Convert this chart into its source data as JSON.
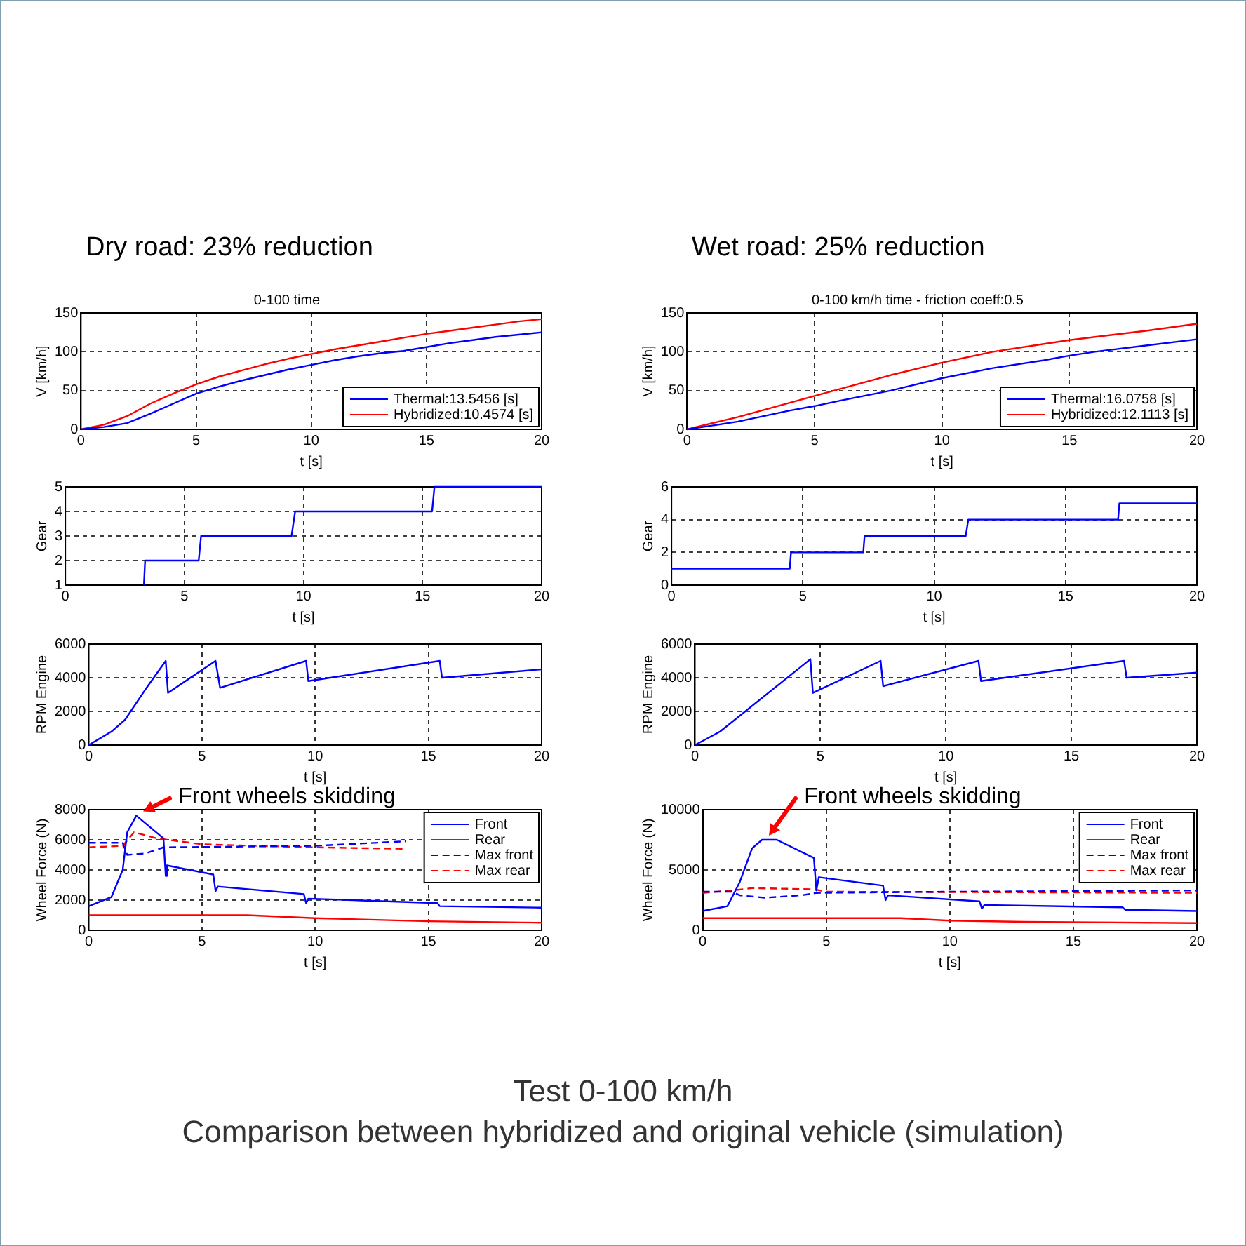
{
  "chart_data": [
    {
      "type": "line",
      "title": "Dry road: 23% reduction",
      "subtitle": "0-100 time",
      "xlabel": "t [s]",
      "ylabel": "V [km/h]",
      "xlim": [
        0,
        20
      ],
      "xticks": [
        0,
        5,
        10,
        15,
        20
      ],
      "ylim": [
        0,
        150
      ],
      "yticks": [
        0,
        50,
        100,
        150
      ],
      "grid": true,
      "legend": "bottom right",
      "series": [
        {
          "name": "Thermal:13.5456 [s]",
          "color": "#0000ff",
          "x": [
            0,
            1,
            2,
            3,
            4,
            5,
            6,
            7,
            8,
            9,
            10,
            11,
            12,
            13,
            14,
            15,
            16,
            17,
            18,
            19,
            20
          ],
          "values": [
            0,
            3,
            8,
            20,
            33,
            46,
            55,
            63,
            70,
            77,
            83,
            89,
            94,
            98,
            101,
            106,
            111,
            115,
            119,
            122,
            125
          ]
        },
        {
          "name": "Hybridized:10.4574 [s]",
          "color": "#ff0000",
          "x": [
            0,
            1,
            2,
            3,
            4,
            5,
            6,
            7,
            8,
            9,
            10,
            11,
            12,
            13,
            14,
            15,
            16,
            17,
            18,
            19,
            20
          ],
          "values": [
            0,
            6,
            17,
            33,
            46,
            58,
            68,
            76,
            84,
            91,
            97,
            103,
            108,
            113,
            118,
            123,
            127,
            131,
            135,
            139,
            142
          ]
        }
      ]
    },
    {
      "type": "line",
      "title": "Wet road: 25% reduction",
      "subtitle": "0-100 km/h time - friction coeff:0.5",
      "xlabel": "t [s]",
      "ylabel": "V [km/h]",
      "xlim": [
        0,
        20
      ],
      "xticks": [
        0,
        5,
        10,
        15,
        20
      ],
      "ylim": [
        0,
        150
      ],
      "yticks": [
        0,
        50,
        100,
        150
      ],
      "grid": true,
      "legend": "bottom right",
      "series": [
        {
          "name": "Thermal:16.0758 [s]",
          "color": "#0000ff",
          "x": [
            0,
            2,
            4,
            5,
            6,
            8,
            10,
            12,
            14,
            15,
            16,
            18,
            20
          ],
          "values": [
            0,
            10,
            24,
            30,
            37,
            50,
            66,
            79,
            89,
            95,
            100,
            108,
            116
          ]
        },
        {
          "name": "Hybridized:12.1113 [s]",
          "color": "#ff0000",
          "x": [
            0,
            2,
            4,
            5,
            6,
            8,
            10,
            12,
            14,
            15,
            16,
            18,
            20
          ],
          "values": [
            0,
            16,
            34,
            43,
            52,
            70,
            86,
            100,
            110,
            115,
            119,
            127,
            136
          ]
        }
      ]
    },
    {
      "type": "line",
      "xlabel": "t [s]",
      "ylabel": "Gear",
      "xlim": [
        0,
        20
      ],
      "xticks": [
        0,
        5,
        10,
        15,
        20
      ],
      "ylim": [
        1,
        5
      ],
      "yticks": [
        1,
        2,
        3,
        4,
        5
      ],
      "grid": true,
      "series": [
        {
          "color": "#0000ff",
          "x": [
            3.3,
            3.35,
            5.6,
            5.7,
            9.5,
            9.65,
            15.4,
            15.5,
            20
          ],
          "values": [
            1,
            2,
            2,
            3,
            3,
            4,
            4,
            5,
            5
          ]
        }
      ]
    },
    {
      "type": "line",
      "xlabel": "t [s]",
      "ylabel": "Gear",
      "xlim": [
        0,
        20
      ],
      "xticks": [
        0,
        5,
        10,
        15,
        20
      ],
      "ylim": [
        0,
        6
      ],
      "yticks": [
        0,
        2,
        4,
        6
      ],
      "grid": true,
      "series": [
        {
          "color": "#0000ff",
          "x": [
            0,
            4.5,
            4.55,
            7.3,
            7.35,
            11.2,
            11.3,
            17,
            17.05,
            20
          ],
          "values": [
            1,
            1,
            2,
            2,
            3,
            3,
            4,
            4,
            5,
            5
          ]
        }
      ]
    },
    {
      "type": "line",
      "xlabel": "t [s]",
      "ylabel": "RPM Engine",
      "xlim": [
        0,
        20
      ],
      "xticks": [
        0,
        5,
        10,
        15,
        20
      ],
      "ylim": [
        0,
        6000
      ],
      "yticks": [
        0,
        2000,
        4000,
        6000
      ],
      "grid": true,
      "series": [
        {
          "color": "#0000ff",
          "x": [
            0,
            1,
            1.6,
            2.5,
            3.4,
            3.5,
            5.6,
            5.8,
            9.6,
            9.7,
            15.5,
            15.6,
            20
          ],
          "values": [
            0,
            800,
            1500,
            3300,
            5000,
            3100,
            5000,
            3400,
            5000,
            3800,
            5000,
            4000,
            4500
          ]
        }
      ]
    },
    {
      "type": "line",
      "xlabel": "t [s]",
      "ylabel": "RPM Engine",
      "xlim": [
        0,
        20
      ],
      "xticks": [
        0,
        5,
        10,
        15,
        20
      ],
      "ylim": [
        0,
        6000
      ],
      "yticks": [
        0,
        2000,
        4000,
        6000
      ],
      "grid": true,
      "series": [
        {
          "color": "#0000ff",
          "x": [
            0,
            1,
            4.6,
            4.7,
            7.4,
            7.5,
            11.3,
            11.4,
            17.1,
            17.2,
            20
          ],
          "values": [
            0,
            800,
            5100,
            3100,
            5000,
            3500,
            5000,
            3800,
            5000,
            4000,
            4300
          ]
        }
      ]
    },
    {
      "type": "line",
      "xlabel": "t [s]",
      "ylabel": "Wheel Force (N)",
      "xlim": [
        0,
        20
      ],
      "xticks": [
        0,
        5,
        10,
        15,
        20
      ],
      "ylim": [
        0,
        8000
      ],
      "yticks": [
        0,
        2000,
        4000,
        6000,
        8000
      ],
      "grid": true,
      "legend": "top right",
      "annotations": [
        {
          "text": "Front wheels skidding",
          "x": 2.1,
          "y": 7600
        }
      ],
      "series": [
        {
          "name": "Front",
          "color": "#0000ff",
          "x": [
            0,
            1,
            1.5,
            1.7,
            2.1,
            2.5,
            3.3,
            3.4,
            3.45,
            5.5,
            5.6,
            5.7,
            9.5,
            9.6,
            9.7,
            15.4,
            15.5,
            20
          ],
          "values": [
            1600,
            2200,
            4000,
            6500,
            7600,
            7100,
            6100,
            3600,
            4300,
            3700,
            2600,
            2900,
            2400,
            1800,
            2100,
            1800,
            1600,
            1500
          ]
        },
        {
          "name": "Rear",
          "color": "#ff0000",
          "x": [
            0,
            7,
            10,
            15,
            20
          ],
          "values": [
            1000,
            1000,
            800,
            600,
            500
          ]
        },
        {
          "name": "Max front",
          "color": "#0000ff",
          "line_style": "dashed",
          "x": [
            0,
            1.5,
            1.7,
            2.5,
            3.3,
            10,
            14
          ],
          "values": [
            5800,
            5800,
            5000,
            5100,
            5500,
            5600,
            5900
          ]
        },
        {
          "name": "Max rear",
          "color": "#ff0000",
          "line_style": "dashed",
          "x": [
            0,
            1.5,
            2,
            3,
            5,
            10,
            14
          ],
          "values": [
            5500,
            5600,
            6500,
            6100,
            5700,
            5500,
            5400
          ]
        }
      ]
    },
    {
      "type": "line",
      "xlabel": "t [s]",
      "ylabel": "Wheel Force (N)",
      "xlim": [
        0,
        20
      ],
      "xticks": [
        0,
        5,
        10,
        15,
        20
      ],
      "ylim": [
        0,
        10000
      ],
      "yticks": [
        0,
        5000,
        10000
      ],
      "grid": true,
      "legend": "top right",
      "annotations": [
        {
          "text": "Front wheels skidding",
          "x": 2.4,
          "y": 7500
        },
        "Test 0-100 km/h",
        "Comparison between hybridized and original vehicle (simulation)"
      ],
      "series": [
        {
          "name": "Front",
          "color": "#0000ff",
          "x": [
            0,
            1,
            1.5,
            2,
            2.4,
            3,
            4.5,
            4.6,
            4.7,
            7.3,
            7.4,
            7.5,
            11.2,
            11.3,
            11.4,
            17,
            17.1,
            20
          ],
          "values": [
            1600,
            2000,
            4000,
            6800,
            7500,
            7500,
            6000,
            3300,
            4400,
            3700,
            2500,
            2900,
            2400,
            1800,
            2100,
            1900,
            1700,
            1600
          ]
        },
        {
          "name": "Rear",
          "color": "#ff0000",
          "x": [
            0,
            8,
            10,
            13,
            20
          ],
          "values": [
            1000,
            1000,
            800,
            700,
            600
          ]
        },
        {
          "name": "Max front",
          "color": "#0000ff",
          "line_style": "dashed",
          "x": [
            0,
            1.2,
            1.5,
            2.5,
            4,
            4.6,
            10,
            20
          ],
          "values": [
            3200,
            3200,
            2900,
            2700,
            2900,
            3100,
            3200,
            3300
          ]
        },
        {
          "name": "Max rear",
          "color": "#ff0000",
          "line_style": "dashed",
          "x": [
            0,
            1.2,
            2,
            4.5,
            5,
            20
          ],
          "values": [
            3100,
            3300,
            3500,
            3400,
            3200,
            3100
          ]
        }
      ]
    }
  ]
}
